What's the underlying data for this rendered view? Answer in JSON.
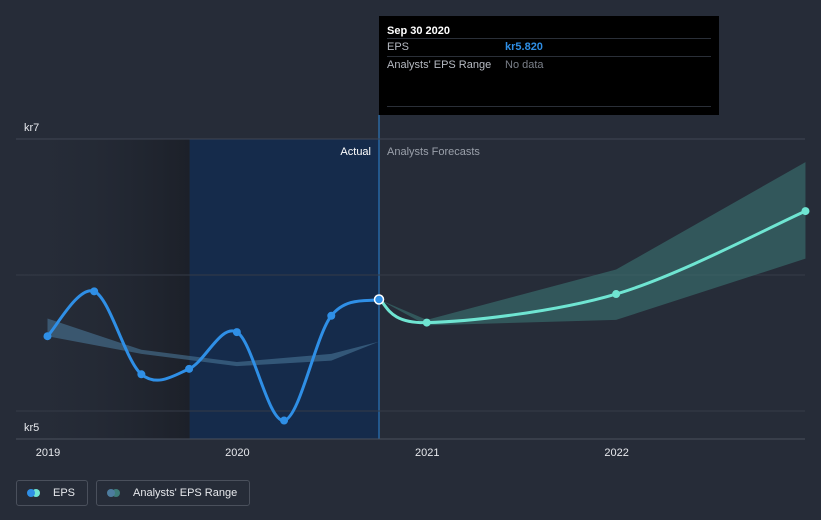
{
  "chart_data": {
    "type": "line",
    "currency_prefix": "kr",
    "y_ticks": [
      {
        "value": 7,
        "label": "kr7"
      },
      {
        "value": 5,
        "label": "kr5"
      }
    ],
    "x_ticks": [
      {
        "value": "2019-01-01",
        "label": "2019"
      },
      {
        "value": "2020-01-01",
        "label": "2020"
      },
      {
        "value": "2021-01-01",
        "label": "2021"
      },
      {
        "value": "2022-01-01",
        "label": "2022"
      }
    ],
    "ylim": [
      4.8,
      7.1
    ],
    "regions": {
      "actual_label": "Actual",
      "forecast_label": "Analysts Forecasts",
      "divider_date": "2020-09-30",
      "highlight_start": "2019-10-01"
    },
    "series": [
      {
        "name": "EPS",
        "color": "#2f8fe6",
        "points": [
          {
            "x": "2018-12-31",
            "y": 5.55
          },
          {
            "x": "2019-03-31",
            "y": 5.88
          },
          {
            "x": "2019-06-30",
            "y": 5.27
          },
          {
            "x": "2019-09-30",
            "y": 5.31
          },
          {
            "x": "2019-12-31",
            "y": 5.58
          },
          {
            "x": "2020-03-31",
            "y": 4.93
          },
          {
            "x": "2020-06-30",
            "y": 5.7
          },
          {
            "x": "2020-09-30",
            "y": 5.82
          }
        ]
      },
      {
        "name": "EPS forecast",
        "color": "#6fe5d2",
        "points": [
          {
            "x": "2020-09-30",
            "y": 5.82
          },
          {
            "x": "2020-12-31",
            "y": 5.65
          },
          {
            "x": "2021-12-31",
            "y": 5.86
          },
          {
            "x": "2022-12-31",
            "y": 6.47
          }
        ]
      }
    ],
    "range_series": [
      {
        "name": "Analysts' EPS Range",
        "color": "#4d7c9e",
        "kind": "historical",
        "upper": [
          {
            "x": "2018-12-31",
            "y": 5.68
          },
          {
            "x": "2019-06-30",
            "y": 5.45
          },
          {
            "x": "2019-12-31",
            "y": 5.36
          },
          {
            "x": "2020-06-30",
            "y": 5.42
          },
          {
            "x": "2020-09-30",
            "y": 5.51
          }
        ],
        "lower": [
          {
            "x": "2018-12-31",
            "y": 5.55
          },
          {
            "x": "2019-06-30",
            "y": 5.42
          },
          {
            "x": "2019-12-31",
            "y": 5.33
          },
          {
            "x": "2020-06-30",
            "y": 5.37
          },
          {
            "x": "2020-09-30",
            "y": 5.51
          }
        ]
      },
      {
        "name": "Analysts' EPS Range",
        "color": "#3d7c78",
        "kind": "forecast",
        "upper": [
          {
            "x": "2020-09-30",
            "y": 5.82
          },
          {
            "x": "2020-12-31",
            "y": 5.67
          },
          {
            "x": "2021-12-31",
            "y": 6.04
          },
          {
            "x": "2022-12-31",
            "y": 6.83
          }
        ],
        "lower": [
          {
            "x": "2020-09-30",
            "y": 5.82
          },
          {
            "x": "2020-12-31",
            "y": 5.63
          },
          {
            "x": "2021-12-31",
            "y": 5.67
          },
          {
            "x": "2022-12-31",
            "y": 6.12
          }
        ]
      }
    ]
  },
  "tooltip": {
    "date": "Sep 30 2020",
    "rows": [
      {
        "key": "EPS",
        "value": "kr5.820"
      },
      {
        "key": "Analysts' EPS Range",
        "value": "No data"
      }
    ]
  },
  "legend": {
    "items": [
      {
        "label": "EPS",
        "colors": [
          "#2f8fe6",
          "#6fe5d2"
        ]
      },
      {
        "label": "Analysts' EPS Range",
        "colors": [
          "#4d7c9e",
          "#3d7c78"
        ]
      }
    ]
  }
}
